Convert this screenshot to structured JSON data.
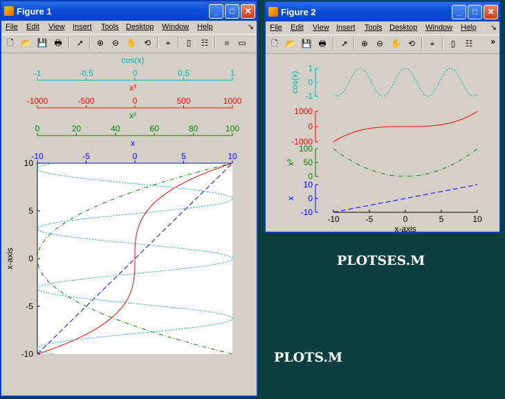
{
  "window1": {
    "title": "Figure 1",
    "menu": [
      "File",
      "Edit",
      "View",
      "Insert",
      "Tools",
      "Desktop",
      "Window",
      "Help"
    ],
    "dock_icon": "dock-arrow-icon",
    "toolbar_icons": [
      "new-figure-icon",
      "open-file-icon",
      "save-icon",
      "print-icon",
      "select-arrow-icon",
      "zoom-in-icon",
      "zoom-out-icon",
      "pan-hand-icon",
      "rotate-3d-icon",
      "data-cursor-icon",
      "colorbar-icon",
      "legend-icon",
      "hide-plot-tools-icon",
      "show-plot-tools-icon"
    ]
  },
  "window2": {
    "title": "Figure 2",
    "menu": [
      "File",
      "Edit",
      "View",
      "Insert",
      "Tools",
      "Desktop",
      "Window",
      "Help"
    ],
    "dock_icon": "dock-arrow-icon",
    "overflow_label": "»",
    "toolbar_icons": [
      "new-figure-icon",
      "open-file-icon",
      "save-icon",
      "print-icon",
      "select-arrow-icon",
      "zoom-in-icon",
      "zoom-out-icon",
      "pan-hand-icon",
      "rotate-3d-icon",
      "data-cursor-icon",
      "colorbar-icon",
      "legend-icon"
    ]
  },
  "captions": {
    "plotses": "PLOTSES.M",
    "plots": "PLOTS.M"
  },
  "colors": {
    "cyan": "#00b3b3",
    "red": "#ff0000",
    "green": "#008000",
    "blue": "#0000ff",
    "desktop": "#0d3f3f",
    "face": "#d4d0c8"
  },
  "chart_data": [
    {
      "type": "line",
      "figure": "Figure 1",
      "ylabel": "x-axis",
      "ylim": [
        -10,
        10
      ],
      "yticks": [
        -10,
        -5,
        0,
        5,
        10
      ],
      "top_axes": [
        {
          "label": "cos(x)",
          "color": "#00b3b3",
          "ticks": [
            "-1",
            "-0.5",
            "0",
            "0.5",
            "1"
          ]
        },
        {
          "label": "x³",
          "color": "#ff0000",
          "ticks": [
            "-1000",
            "-500",
            "0",
            "500",
            "1000"
          ]
        },
        {
          "label": "x²",
          "color": "#008000",
          "ticks": [
            "0",
            "20",
            "40",
            "60",
            "80",
            "100"
          ]
        },
        {
          "label": "x",
          "color": "#0000ff",
          "ticks": [
            "-10",
            "-5",
            "0",
            "5",
            "10"
          ]
        }
      ],
      "series": [
        {
          "name": "x",
          "color": "#0000ff",
          "style": "dashed",
          "function": "x",
          "xlim": [
            -10,
            10
          ]
        },
        {
          "name": "x³",
          "color": "#ff0000",
          "style": "solid",
          "function": "x^3",
          "xlim": [
            -1000,
            1000
          ]
        },
        {
          "name": "x²",
          "color": "#008000",
          "style": "dashdot",
          "function": "x^2",
          "xlim": [
            0,
            100
          ]
        },
        {
          "name": "cos(x)",
          "color": "#00b3b3",
          "style": "dotted",
          "function": "cos(x)",
          "xlim": [
            -1,
            1
          ]
        }
      ]
    },
    {
      "type": "line",
      "figure": "Figure 2",
      "xlabel": "x-axis",
      "xlim": [
        -10,
        10
      ],
      "xticks": [
        "-10",
        "-5",
        "0",
        "5",
        "10"
      ],
      "series": [
        {
          "name": "cos(x)",
          "label": "cos(x)",
          "color": "#00b3b3",
          "style": "dotted",
          "function": "cos(x)",
          "ylim": [
            -1,
            1
          ],
          "yticks": [
            "-1",
            "0",
            "1"
          ]
        },
        {
          "name": "x³",
          "label": "",
          "color": "#ff0000",
          "style": "solid",
          "function": "x^3",
          "ylim": [
            -1000,
            1000
          ],
          "yticks": [
            "-1000",
            "0",
            "1000"
          ]
        },
        {
          "name": "x²",
          "label": "x²",
          "color": "#008000",
          "style": "dashdot",
          "function": "x^2",
          "ylim": [
            0,
            100
          ],
          "yticks": [
            "0",
            "50",
            "100"
          ]
        },
        {
          "name": "x",
          "label": "x",
          "color": "#0000ff",
          "style": "dashed",
          "function": "x",
          "ylim": [
            -10,
            10
          ],
          "yticks": [
            "-10",
            "0",
            "10"
          ]
        }
      ]
    }
  ]
}
